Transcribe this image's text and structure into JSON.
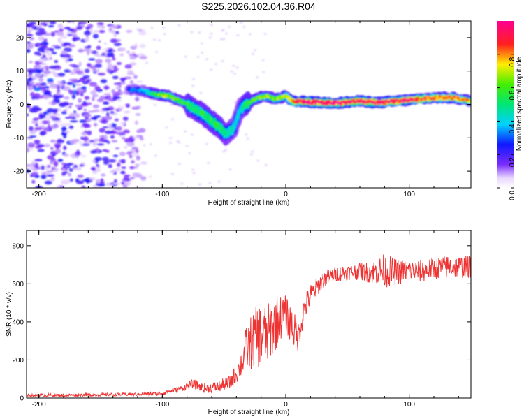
{
  "title": "S225.2026.102.04.36.R04",
  "chart_data": [
    {
      "type": "heatmap",
      "name": "spectrogram",
      "xlabel": "Height of straight line (km)",
      "ylabel": "Frequency (Hz)",
      "xlim": [
        -210,
        150
      ],
      "ylim": [
        -25,
        25
      ],
      "xticks": [
        -200,
        -100,
        0,
        100
      ],
      "yticks": [
        -20,
        -10,
        0,
        10,
        20
      ],
      "colorbar": {
        "label": "Normalized spectral amplitude",
        "range": [
          0,
          1
        ],
        "ticks": [
          "0.0",
          "0.2",
          "0.4",
          "0.6",
          "0.8"
        ]
      },
      "ridge": {
        "description": "frequency of peak spectral amplitude vs height",
        "x": [
          -127,
          -115,
          -105,
          -95,
          -85,
          -75,
          -65,
          -55,
          -48,
          -42,
          -37,
          -30,
          -22,
          -15,
          -8,
          0,
          5,
          15,
          30,
          45,
          60,
          75,
          90,
          105,
          120,
          135,
          150
        ],
        "y": [
          4.5,
          4,
          3,
          2.5,
          1,
          -1,
          -3.5,
          -6.5,
          -9,
          -7,
          -1.5,
          0.5,
          2,
          2.5,
          1.5,
          2.5,
          0.8,
          0.8,
          0.5,
          0.5,
          1,
          0.5,
          1,
          1.5,
          2,
          2,
          1
        ],
        "amplitude": [
          0.25,
          0.3,
          0.55,
          0.65,
          0.55,
          0.45,
          0.5,
          0.5,
          0.45,
          0.4,
          0.35,
          0.55,
          0.6,
          0.6,
          0.6,
          0.65,
          0.8,
          0.95,
          0.95,
          0.95,
          0.9,
          0.9,
          0.9,
          0.85,
          0.8,
          0.8,
          0.7
        ]
      },
      "noise_region": {
        "x_range": [
          -210,
          -115
        ],
        "y_range": [
          -25,
          25
        ]
      }
    },
    {
      "type": "line",
      "name": "snr",
      "xlabel": "Height of straight line (km)",
      "ylabel": "SNR (10 * v/v)",
      "xlim": [
        -210,
        150
      ],
      "ylim": [
        0,
        880
      ],
      "xticks": [
        -200,
        -100,
        0,
        100
      ],
      "yticks": [
        0,
        200,
        400,
        600,
        800
      ],
      "color": "#ee3333",
      "series": [
        {
          "name": "SNR",
          "x": [
            -210,
            -180,
            -150,
            -120,
            -100,
            -85,
            -75,
            -65,
            -55,
            -45,
            -38,
            -32,
            -27,
            -22,
            -15,
            -10,
            -5,
            0,
            5,
            10,
            15,
            20,
            25,
            30,
            40,
            50,
            60,
            70,
            80,
            90,
            100,
            110,
            120,
            130,
            140,
            150
          ],
          "y": [
            15,
            15,
            18,
            20,
            25,
            50,
            75,
            50,
            60,
            80,
            150,
            260,
            300,
            330,
            330,
            380,
            420,
            440,
            380,
            320,
            470,
            540,
            580,
            620,
            650,
            660,
            665,
            660,
            670,
            660,
            670,
            665,
            680,
            690,
            690,
            690
          ],
          "noise_amplitude": [
            8,
            8,
            8,
            8,
            10,
            15,
            25,
            25,
            30,
            40,
            60,
            120,
            150,
            170,
            160,
            160,
            120,
            100,
            100,
            80,
            70,
            60,
            50,
            45,
            40,
            40,
            45,
            60,
            90,
            70,
            55,
            60,
            60,
            60,
            60,
            60
          ]
        }
      ]
    }
  ]
}
